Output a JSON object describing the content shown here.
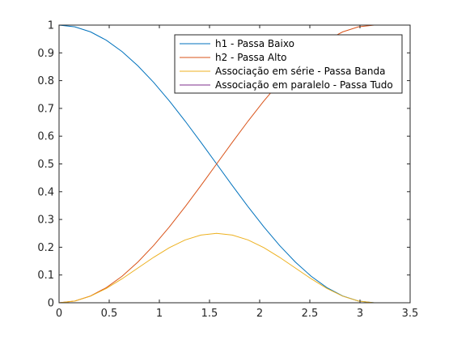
{
  "chart_data": {
    "type": "line",
    "title": "",
    "xlabel": "",
    "ylabel": "",
    "xlim": [
      0,
      3.5
    ],
    "ylim": [
      0,
      1
    ],
    "x_ticks": [
      "0",
      "0.5",
      "1",
      "1.5",
      "2",
      "2.5",
      "3",
      "3.5"
    ],
    "y_ticks": [
      "0",
      "0.1",
      "0.2",
      "0.3",
      "0.4",
      "0.5",
      "0.6",
      "0.7",
      "0.8",
      "0.9",
      "1"
    ],
    "grid": false,
    "legend_position": "top-right",
    "x": [
      0,
      0.1571,
      0.3142,
      0.4712,
      0.6283,
      0.7854,
      0.9425,
      1.0996,
      1.2566,
      1.4137,
      1.5708,
      1.7279,
      1.885,
      2.042,
      2.1991,
      2.3562,
      2.5133,
      2.6704,
      2.8274,
      2.9845,
      3.1416
    ],
    "series": [
      {
        "name": "h1 - Passa Baixo",
        "color": "#0072BD",
        "values": [
          1.0,
          0.9938,
          0.9755,
          0.9455,
          0.9045,
          0.8536,
          0.7939,
          0.727,
          0.6545,
          0.5782,
          0.5,
          0.4218,
          0.3455,
          0.273,
          0.2061,
          0.1464,
          0.0955,
          0.0545,
          0.0245,
          0.0062,
          0.0
        ]
      },
      {
        "name": "h2 - Passa Alto",
        "color": "#D95319",
        "values": [
          0.0,
          0.0062,
          0.0245,
          0.0545,
          0.0955,
          0.1464,
          0.2061,
          0.273,
          0.3455,
          0.4218,
          0.5,
          0.5782,
          0.6545,
          0.727,
          0.7939,
          0.8536,
          0.9045,
          0.9455,
          0.9755,
          0.9938,
          1.0
        ]
      },
      {
        "name": "Associação em série - Passa Banda",
        "color": "#EDB120",
        "values": [
          0.0,
          0.0062,
          0.0239,
          0.0515,
          0.0864,
          0.125,
          0.1636,
          0.1985,
          0.2261,
          0.2439,
          0.25,
          0.2439,
          0.2261,
          0.1985,
          0.1636,
          0.125,
          0.0864,
          0.0515,
          0.0239,
          0.0062,
          0.0
        ]
      },
      {
        "name": "Associação em paralelo - Passa Tudo",
        "color": "#7E2F8E",
        "values": [
          1,
          1,
          1,
          1,
          1,
          1,
          1,
          1,
          1,
          1,
          1,
          1,
          1,
          1,
          1,
          1,
          1,
          1,
          1,
          1,
          1
        ]
      }
    ]
  }
}
